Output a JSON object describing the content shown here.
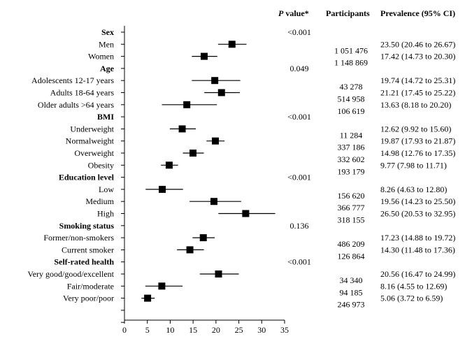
{
  "chart_data": {
    "type": "forest",
    "xlim": [
      0,
      35
    ],
    "x_ticks": [
      0,
      5,
      10,
      15,
      20,
      25,
      30,
      35
    ],
    "grid": false,
    "columns": {
      "p_value_italic": "P",
      "p_value_rest": " value*",
      "participants": "Participants",
      "prevalence": "Prevalence (95% CI)"
    },
    "rows": [
      {
        "label": "Sex",
        "header": true,
        "p": "<0.001"
      },
      {
        "label": "Men",
        "est": 23.5,
        "lo": 20.46,
        "hi": 26.67,
        "n": "1 051 476",
        "ci": "23.50 (20.46 to 26.67)"
      },
      {
        "label": "Women",
        "est": 17.42,
        "lo": 14.73,
        "hi": 20.3,
        "n": "1 148 869",
        "ci": "17.42 (14.73 to 20.30)"
      },
      {
        "label": "Age",
        "header": true,
        "p": "0.049"
      },
      {
        "label": "Adolescents 12-17 years",
        "est": 19.74,
        "lo": 14.72,
        "hi": 25.31,
        "n": "43 278",
        "ci": "19.74 (14.72 to 25.31)"
      },
      {
        "label": "Adults 18-64 years",
        "est": 21.21,
        "lo": 17.45,
        "hi": 25.22,
        "n": "514 958",
        "ci": "21.21 (17.45 to 25.22)"
      },
      {
        "label": "Older adults >64 years",
        "est": 13.63,
        "lo": 8.18,
        "hi": 20.2,
        "n": "106 619",
        "ci": "13.63 (8.18 to 20.20)"
      },
      {
        "label": "BMI",
        "header": true,
        "p": "<0.001"
      },
      {
        "label": "Underweight",
        "est": 12.62,
        "lo": 9.92,
        "hi": 15.6,
        "n": "11 284",
        "ci": "12.62 (9.92 to 15.60)"
      },
      {
        "label": "Normalweight",
        "est": 19.87,
        "lo": 17.93,
        "hi": 21.87,
        "n": "337 186",
        "ci": "19.87 (17.93 to 21.87)"
      },
      {
        "label": "Overweight",
        "est": 14.98,
        "lo": 12.76,
        "hi": 17.35,
        "n": "332 602",
        "ci": "14.98 (12.76 to 17.35)"
      },
      {
        "label": "Obesity",
        "est": 9.77,
        "lo": 7.98,
        "hi": 11.71,
        "n": "193 179",
        "ci": "9.77 (7.98 to 11.71)"
      },
      {
        "label": "Education level",
        "header": true,
        "p": "<0.001"
      },
      {
        "label": "Low",
        "est": 8.26,
        "lo": 4.63,
        "hi": 12.8,
        "n": "156 620",
        "ci": "8.26 (4.63 to 12.80)"
      },
      {
        "label": "Medium",
        "est": 19.56,
        "lo": 14.23,
        "hi": 25.5,
        "n": "366 777",
        "ci": "19.56 (14.23 to 25.50)"
      },
      {
        "label": "High",
        "est": 26.5,
        "lo": 20.53,
        "hi": 32.95,
        "n": "318 155",
        "ci": "26.50 (20.53 to 32.95)"
      },
      {
        "label": "Smoking status",
        "header": true,
        "p": "0.136"
      },
      {
        "label": "Former/non-smokers",
        "est": 17.23,
        "lo": 14.88,
        "hi": 19.72,
        "n": "486 209",
        "ci": "17.23 (14.88 to 19.72)"
      },
      {
        "label": "Current smoker",
        "est": 14.3,
        "lo": 11.48,
        "hi": 17.36,
        "n": "126 864",
        "ci": "14.30 (11.48 to 17.36)"
      },
      {
        "label": "Self-rated health",
        "header": true,
        "p": "<0.001"
      },
      {
        "label": "Very good/good/excellent",
        "est": 20.56,
        "lo": 16.47,
        "hi": 24.99,
        "n": "34 340",
        "ci": "20.56 (16.47 to 24.99)"
      },
      {
        "label": "Fair/moderate",
        "est": 8.16,
        "lo": 4.55,
        "hi": 12.69,
        "n": "94 185",
        "ci": "8.16 (4.55 to 12.69)"
      },
      {
        "label": "Very poor/poor",
        "est": 5.06,
        "lo": 3.72,
        "hi": 6.59,
        "n": "246 973",
        "ci": "5.06 (3.72 to 6.59)"
      }
    ]
  }
}
